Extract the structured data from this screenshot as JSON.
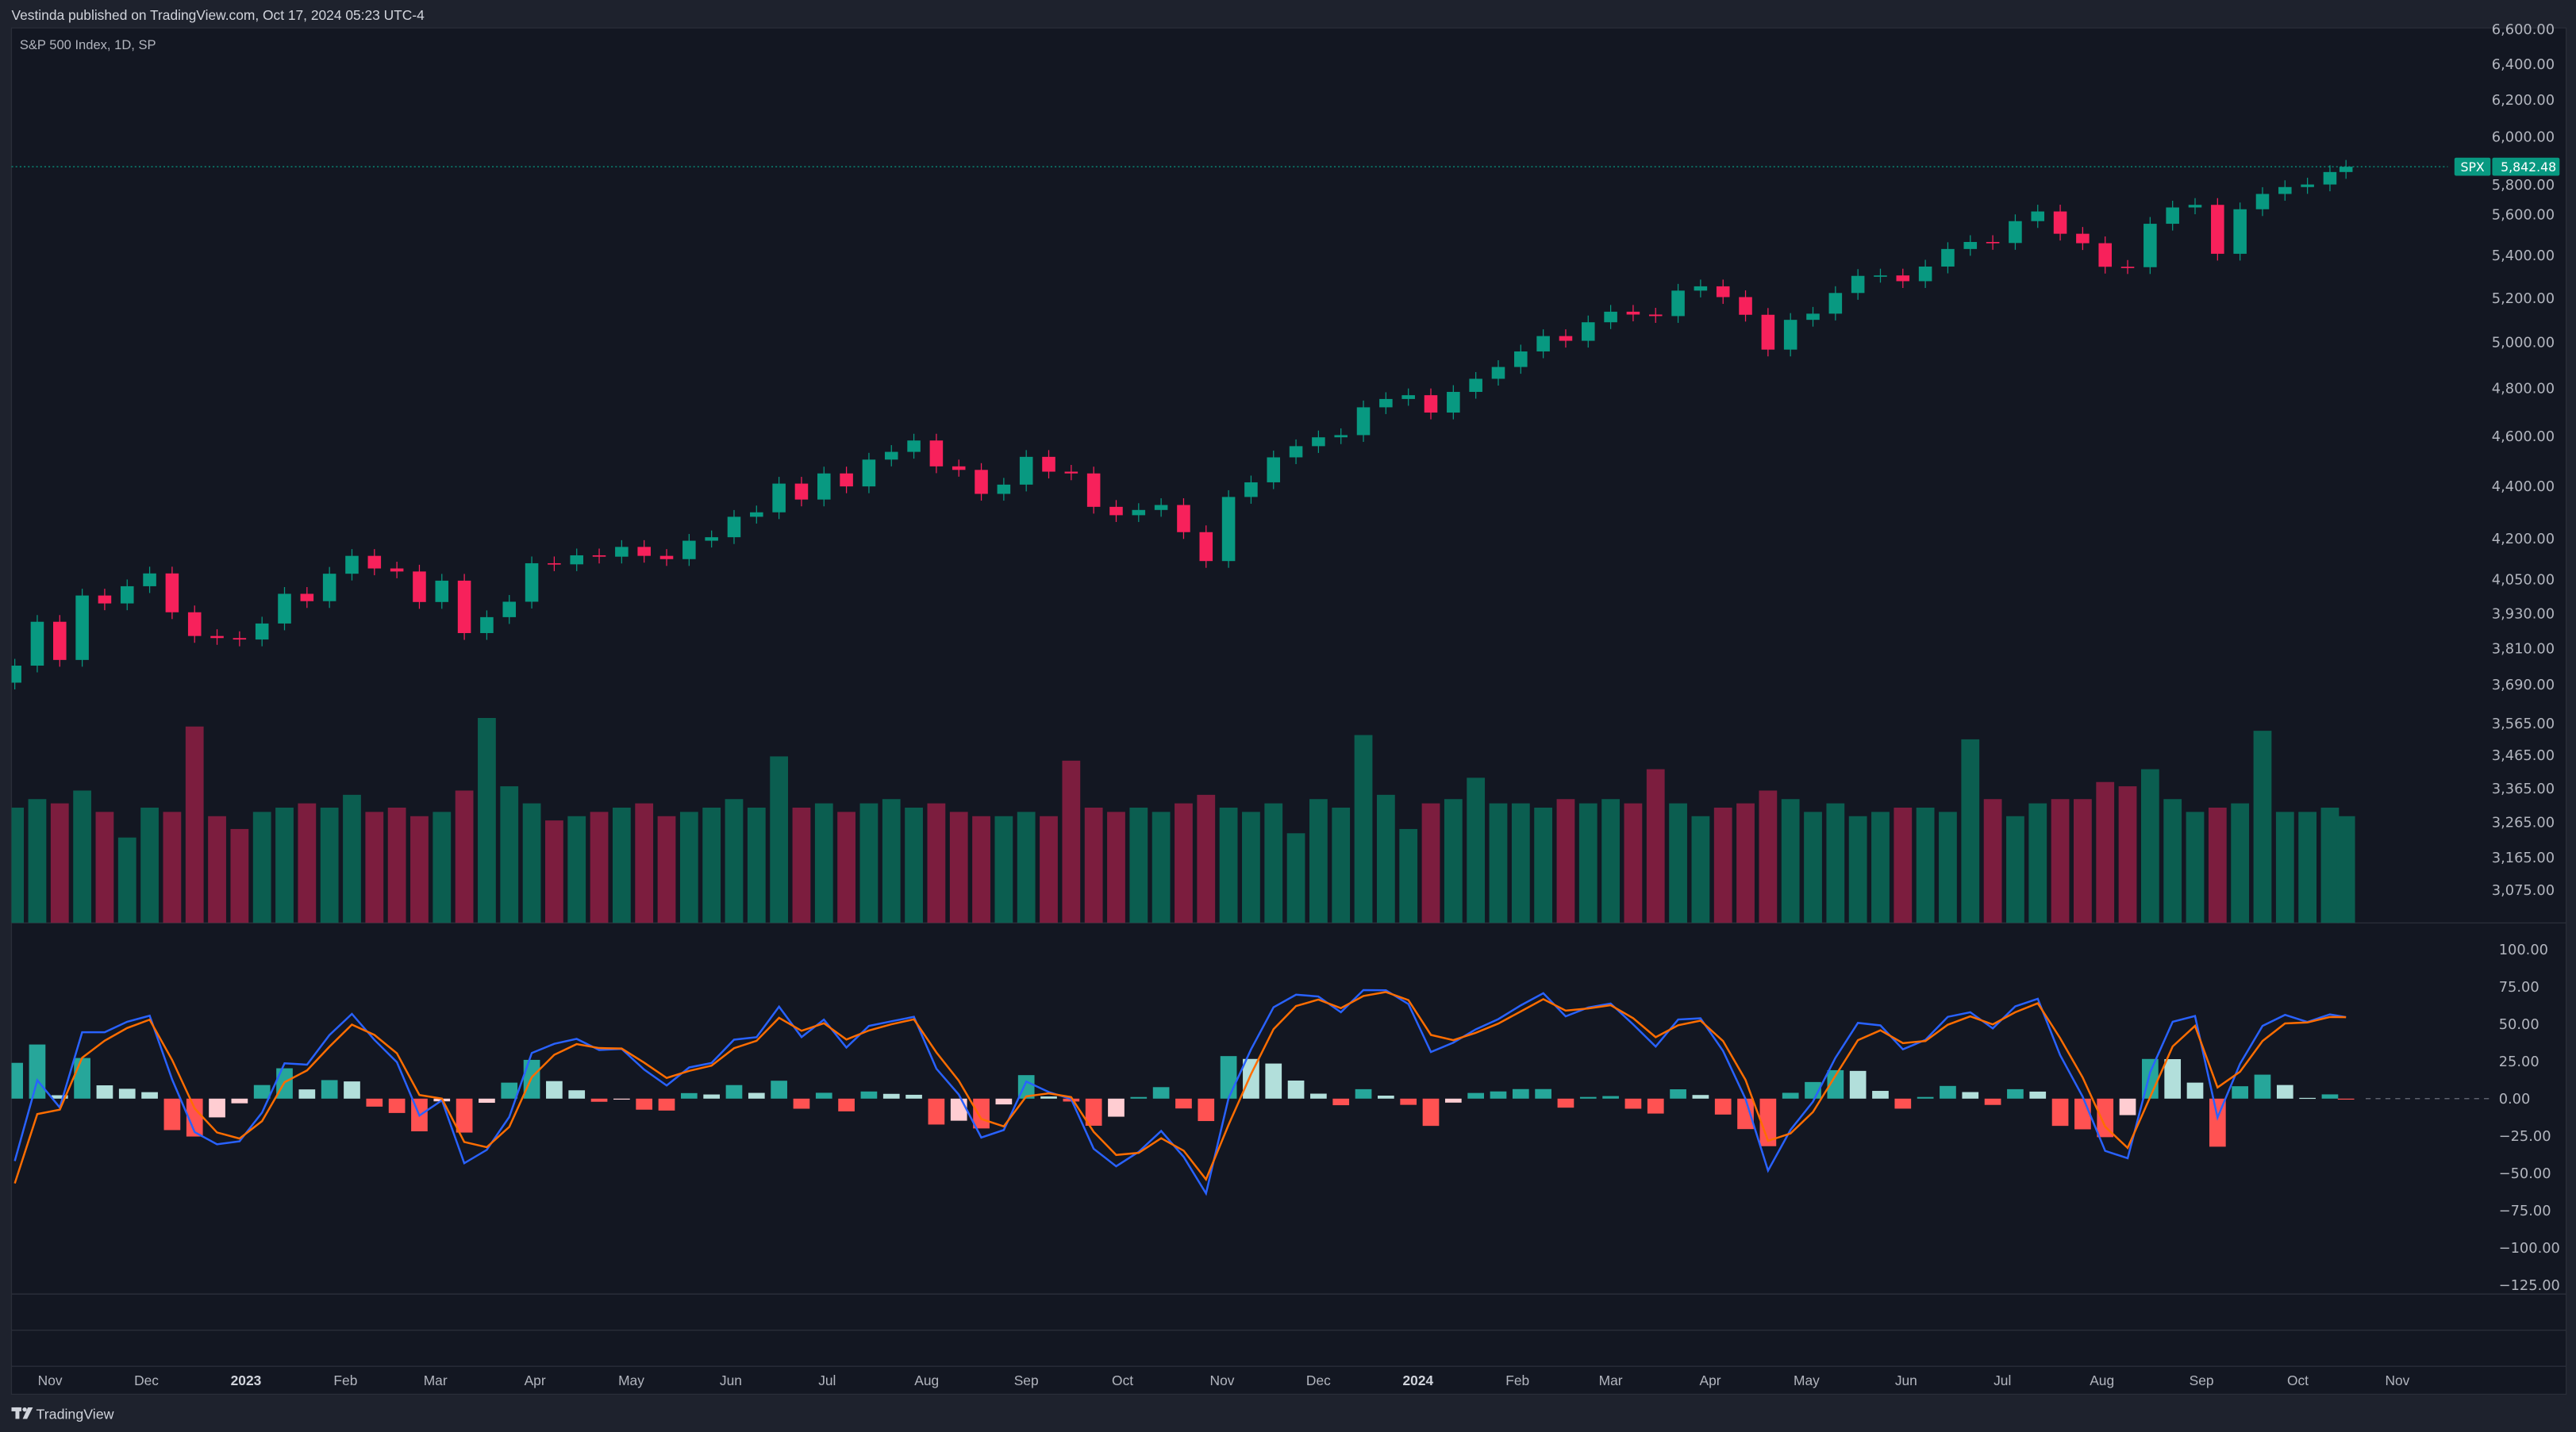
{
  "header": {
    "published": "Vestinda published on TradingView.com, Oct 17, 2024 05:23 UTC-4"
  },
  "legend": {
    "title": "S&P 500 Index, 1D, SP"
  },
  "last_price": {
    "symbol": "SPX",
    "value": "5,842.48"
  },
  "footer": {
    "brand": "TradingView"
  },
  "colors": {
    "up": "#089981",
    "down": "#f7215b",
    "up_volume": "#0b5e50",
    "down_volume": "#7c1d3e",
    "macd": "#2962ff",
    "signal": "#ff6d00",
    "hist_up_strong": "#26a69a",
    "hist_up_weak": "#b2dfdb",
    "hist_down_strong": "#ff5252",
    "hist_down_weak": "#ffcdd2",
    "background": "#131722",
    "frame": "#1e222d"
  },
  "chart_data": {
    "type": "candlestick",
    "title": "S&P 500 Index, 1D, SP",
    "price_scale": "log",
    "price_ticks": [
      6600,
      6400,
      6200,
      6000,
      5800,
      5600,
      5400,
      5200,
      5000,
      4800,
      4600,
      4400,
      4200,
      4050,
      3930,
      3810,
      3690,
      3565,
      3465,
      3365,
      3265,
      3165,
      3075
    ],
    "macd_ticks": [
      100,
      75,
      50,
      25,
      0,
      -25,
      -50,
      -75,
      -100,
      -125
    ],
    "time_ticks": [
      {
        "label": "Nov",
        "date": "2022-11-01"
      },
      {
        "label": "Dec",
        "date": "2022-12-01"
      },
      {
        "label": "2023",
        "date": "2023-01-01",
        "year": true
      },
      {
        "label": "Feb",
        "date": "2023-02-01"
      },
      {
        "label": "Mar",
        "date": "2023-03-01"
      },
      {
        "label": "Apr",
        "date": "2023-04-01"
      },
      {
        "label": "May",
        "date": "2023-05-01"
      },
      {
        "label": "Jun",
        "date": "2023-06-01"
      },
      {
        "label": "Jul",
        "date": "2023-07-01"
      },
      {
        "label": "Aug",
        "date": "2023-08-01"
      },
      {
        "label": "Sep",
        "date": "2023-09-01"
      },
      {
        "label": "Oct",
        "date": "2023-10-01"
      },
      {
        "label": "Nov",
        "date": "2023-11-01"
      },
      {
        "label": "Dec",
        "date": "2023-12-01"
      },
      {
        "label": "2024",
        "date": "2024-01-01",
        "year": true
      },
      {
        "label": "Feb",
        "date": "2024-02-01"
      },
      {
        "label": "Mar",
        "date": "2024-03-01"
      },
      {
        "label": "Apr",
        "date": "2024-04-01"
      },
      {
        "label": "May",
        "date": "2024-05-01"
      },
      {
        "label": "Jun",
        "date": "2024-06-01"
      },
      {
        "label": "Jul",
        "date": "2024-07-01"
      },
      {
        "label": "Aug",
        "date": "2024-08-01"
      },
      {
        "label": "Sep",
        "date": "2024-09-01"
      },
      {
        "label": "Oct",
        "date": "2024-10-01"
      },
      {
        "label": "Nov",
        "date": "2024-11-01"
      }
    ],
    "date_range": [
      "2022-10-21",
      "2024-10-16"
    ],
    "closes": [
      [
        "2022-10-21",
        3752
      ],
      [
        "2022-10-28",
        3901
      ],
      [
        "2022-11-04",
        3771
      ],
      [
        "2022-11-11",
        3993
      ],
      [
        "2022-11-18",
        3965
      ],
      [
        "2022-11-25",
        4026
      ],
      [
        "2022-12-02",
        4072
      ],
      [
        "2022-12-09",
        3934
      ],
      [
        "2022-12-16",
        3852
      ],
      [
        "2022-12-23",
        3845
      ],
      [
        "2022-12-30",
        3840
      ],
      [
        "2023-01-06",
        3895
      ],
      [
        "2023-01-13",
        3999
      ],
      [
        "2023-01-20",
        3973
      ],
      [
        "2023-01-27",
        4071
      ],
      [
        "2023-02-03",
        4136
      ],
      [
        "2023-02-10",
        4090
      ],
      [
        "2023-02-17",
        4079
      ],
      [
        "2023-02-24",
        3970
      ],
      [
        "2023-03-03",
        4046
      ],
      [
        "2023-03-10",
        3862
      ],
      [
        "2023-03-17",
        3917
      ],
      [
        "2023-03-24",
        3971
      ],
      [
        "2023-03-31",
        4109
      ],
      [
        "2023-04-07",
        4105
      ],
      [
        "2023-04-14",
        4138
      ],
      [
        "2023-04-21",
        4133
      ],
      [
        "2023-04-28",
        4169
      ],
      [
        "2023-05-05",
        4136
      ],
      [
        "2023-05-12",
        4124
      ],
      [
        "2023-05-19",
        4192
      ],
      [
        "2023-05-26",
        4205
      ],
      [
        "2023-06-02",
        4282
      ],
      [
        "2023-06-09",
        4299
      ],
      [
        "2023-06-16",
        4410
      ],
      [
        "2023-06-23",
        4348
      ],
      [
        "2023-06-30",
        4450
      ],
      [
        "2023-07-07",
        4399
      ],
      [
        "2023-07-14",
        4505
      ],
      [
        "2023-07-21",
        4536
      ],
      [
        "2023-07-28",
        4582
      ],
      [
        "2023-08-04",
        4478
      ],
      [
        "2023-08-11",
        4464
      ],
      [
        "2023-08-18",
        4370
      ],
      [
        "2023-08-25",
        4406
      ],
      [
        "2023-09-01",
        4516
      ],
      [
        "2023-09-08",
        4457
      ],
      [
        "2023-09-15",
        4450
      ],
      [
        "2023-09-22",
        4320
      ],
      [
        "2023-09-29",
        4288
      ],
      [
        "2023-10-06",
        4308
      ],
      [
        "2023-10-13",
        4327
      ],
      [
        "2023-10-20",
        4224
      ],
      [
        "2023-10-27",
        4117
      ],
      [
        "2023-11-03",
        4358
      ],
      [
        "2023-11-10",
        4415
      ],
      [
        "2023-11-17",
        4514
      ],
      [
        "2023-11-24",
        4559
      ],
      [
        "2023-12-01",
        4595
      ],
      [
        "2023-12-08",
        4604
      ],
      [
        "2023-12-15",
        4719
      ],
      [
        "2023-12-22",
        4754
      ],
      [
        "2023-12-29",
        4770
      ],
      [
        "2024-01-05",
        4697
      ],
      [
        "2024-01-12",
        4784
      ],
      [
        "2024-01-19",
        4840
      ],
      [
        "2024-01-26",
        4891
      ],
      [
        "2024-02-02",
        4959
      ],
      [
        "2024-02-09",
        5027
      ],
      [
        "2024-02-16",
        5006
      ],
      [
        "2024-02-23",
        5089
      ],
      [
        "2024-03-01",
        5137
      ],
      [
        "2024-03-08",
        5124
      ],
      [
        "2024-03-15",
        5117
      ],
      [
        "2024-03-22",
        5234
      ],
      [
        "2024-03-29",
        5254
      ],
      [
        "2024-04-05",
        5204
      ],
      [
        "2024-04-12",
        5123
      ],
      [
        "2024-04-19",
        4967
      ],
      [
        "2024-04-26",
        5100
      ],
      [
        "2024-05-03",
        5128
      ],
      [
        "2024-05-10",
        5223
      ],
      [
        "2024-05-17",
        5303
      ],
      [
        "2024-05-24",
        5305
      ],
      [
        "2024-05-31",
        5278
      ],
      [
        "2024-06-07",
        5347
      ],
      [
        "2024-06-14",
        5431
      ],
      [
        "2024-06-21",
        5465
      ],
      [
        "2024-06-28",
        5460
      ],
      [
        "2024-07-05",
        5567
      ],
      [
        "2024-07-12",
        5615
      ],
      [
        "2024-07-19",
        5505
      ],
      [
        "2024-07-26",
        5459
      ],
      [
        "2024-08-02",
        5346
      ],
      [
        "2024-08-09",
        5344
      ],
      [
        "2024-08-16",
        5554
      ],
      [
        "2024-08-23",
        5635
      ],
      [
        "2024-08-30",
        5648
      ],
      [
        "2024-09-06",
        5408
      ],
      [
        "2024-09-13",
        5626
      ],
      [
        "2024-09-20",
        5703
      ],
      [
        "2024-09-27",
        5738
      ],
      [
        "2024-10-04",
        5751
      ],
      [
        "2024-10-11",
        5815
      ],
      [
        "2024-10-16",
        5842.48
      ]
    ],
    "volume": [
      2.7,
      2.9,
      2.8,
      3.1,
      2.6,
      2.0,
      2.7,
      2.6,
      4.6,
      2.5,
      2.2,
      2.6,
      2.7,
      2.8,
      2.7,
      3.0,
      2.6,
      2.7,
      2.5,
      2.6,
      3.1,
      4.8,
      3.2,
      2.8,
      2.4,
      2.5,
      2.6,
      2.7,
      2.8,
      2.5,
      2.6,
      2.7,
      2.9,
      2.7,
      3.9,
      2.7,
      2.8,
      2.6,
      2.8,
      2.9,
      2.7,
      2.8,
      2.6,
      2.5,
      2.5,
      2.6,
      2.5,
      3.8,
      2.7,
      2.6,
      2.7,
      2.6,
      2.8,
      3.0,
      2.7,
      2.6,
      2.8,
      2.1,
      2.9,
      2.7,
      4.4,
      3.0,
      2.2,
      2.8,
      2.9,
      3.4,
      2.8,
      2.8,
      2.7,
      2.9,
      2.8,
      2.9,
      2.8,
      3.6,
      2.8,
      2.5,
      2.7,
      2.8,
      3.1,
      2.9,
      2.6,
      2.8,
      2.5,
      2.6,
      2.7,
      2.7,
      2.6,
      4.3,
      2.9,
      2.5,
      2.8,
      2.9,
      2.9,
      3.3,
      3.2,
      3.6,
      2.9,
      2.6,
      2.7,
      2.8,
      4.5,
      2.6,
      2.6,
      2.7,
      2.5
    ]
  }
}
